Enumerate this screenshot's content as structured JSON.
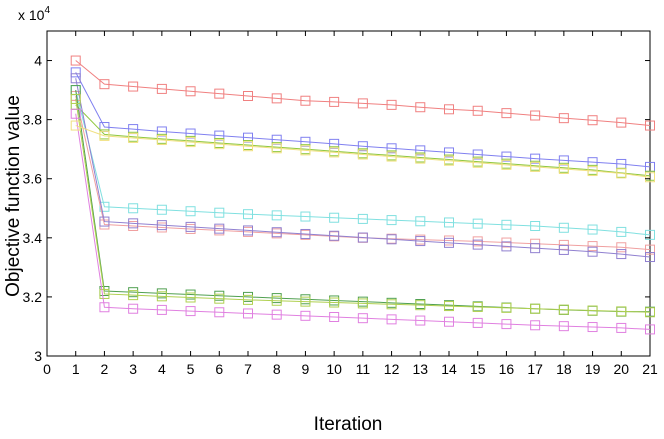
{
  "chart_data": {
    "type": "line",
    "title": "",
    "xlabel": "Iteration",
    "ylabel": "Objective function value",
    "y_multiplier_base": "x 10",
    "y_multiplier_exp": "4",
    "xlim": [
      0,
      21
    ],
    "ylim": [
      30000,
      41000
    ],
    "x_ticks": [
      0,
      1,
      2,
      3,
      4,
      5,
      6,
      7,
      8,
      9,
      10,
      11,
      12,
      13,
      14,
      15,
      16,
      17,
      18,
      19,
      20,
      21
    ],
    "x_tick_labels": [
      "0",
      "1",
      "2",
      "3",
      "4",
      "5",
      "6",
      "7",
      "8",
      "9",
      "10",
      "11",
      "12",
      "13",
      "14",
      "15",
      "16",
      "17",
      "18",
      "19",
      "20",
      "21"
    ],
    "y_ticks": [
      30000,
      32000,
      34000,
      36000,
      38000,
      40000
    ],
    "y_tick_labels": [
      "3",
      "3.2",
      "3.4",
      "3.6",
      "3.8",
      "4"
    ],
    "grid": false,
    "marker": "square-open",
    "x": [
      1,
      2,
      3,
      4,
      5,
      6,
      7,
      8,
      9,
      10,
      11,
      12,
      13,
      14,
      15,
      16,
      17,
      18,
      19,
      20,
      21
    ],
    "series": [
      {
        "color": "#f08080",
        "values": [
          40000,
          39200,
          39120,
          39040,
          38960,
          38880,
          38800,
          38720,
          38640,
          38600,
          38550,
          38500,
          38420,
          38350,
          38300,
          38220,
          38140,
          38050,
          37980,
          37900,
          37800
        ]
      },
      {
        "color": "#8080f0",
        "values": [
          39600,
          37750,
          37680,
          37600,
          37530,
          37460,
          37390,
          37320,
          37250,
          37180,
          37100,
          37030,
          36960,
          36890,
          36820,
          36750,
          36680,
          36620,
          36560,
          36500,
          36400
        ]
      },
      {
        "color": "#90c840",
        "values": [
          38500,
          37500,
          37420,
          37350,
          37280,
          37210,
          37140,
          37070,
          37000,
          36930,
          36860,
          36790,
          36720,
          36650,
          36580,
          36510,
          36440,
          36370,
          36300,
          36200,
          36100
        ]
      },
      {
        "color": "#80e0e0",
        "values": [
          39000,
          35050,
          35000,
          34950,
          34900,
          34850,
          34800,
          34760,
          34720,
          34680,
          34640,
          34600,
          34560,
          34520,
          34480,
          34440,
          34400,
          34340,
          34280,
          34200,
          34100
        ]
      },
      {
        "color": "#f0a0a0",
        "values": [
          38800,
          34450,
          34400,
          34350,
          34300,
          34250,
          34200,
          34150,
          34100,
          34050,
          34000,
          33970,
          33940,
          33910,
          33880,
          33840,
          33800,
          33760,
          33720,
          33680,
          33600
        ]
      },
      {
        "color": "#9080d0",
        "values": [
          39400,
          34550,
          34490,
          34430,
          34370,
          34310,
          34250,
          34190,
          34130,
          34070,
          34010,
          33950,
          33890,
          33830,
          33770,
          33710,
          33650,
          33590,
          33530,
          33450,
          33350
        ]
      },
      {
        "color": "#50a050",
        "values": [
          39000,
          32200,
          32160,
          32120,
          32080,
          32040,
          32000,
          31960,
          31920,
          31880,
          31840,
          31800,
          31760,
          31720,
          31680,
          31640,
          31600,
          31560,
          31530,
          31500,
          31500
        ]
      },
      {
        "color": "#b0d050",
        "values": [
          38700,
          32100,
          32060,
          32020,
          31980,
          31940,
          31900,
          31870,
          31840,
          31810,
          31780,
          31750,
          31720,
          31690,
          31660,
          31630,
          31600,
          31570,
          31540,
          31510,
          31480
        ]
      },
      {
        "color": "#e080e0",
        "values": [
          38200,
          31650,
          31600,
          31560,
          31520,
          31480,
          31440,
          31400,
          31360,
          31320,
          31280,
          31240,
          31200,
          31160,
          31120,
          31080,
          31040,
          31010,
          30980,
          30950,
          30900
        ]
      },
      {
        "color": "#f0e080",
        "values": [
          37800,
          37450,
          37380,
          37310,
          37240,
          37170,
          37100,
          37030,
          36960,
          36890,
          36820,
          36750,
          36680,
          36610,
          36540,
          36470,
          36400,
          36330,
          36260,
          36180,
          36050
        ]
      }
    ]
  }
}
